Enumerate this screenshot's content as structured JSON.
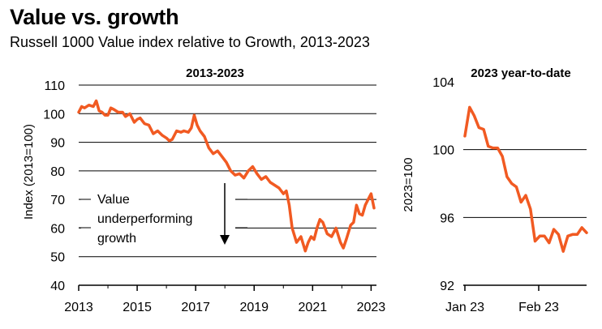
{
  "title": "Value vs. growth",
  "subtitle": "Russell 1000 Value index relative to Growth, 2013-2023",
  "colors": {
    "line": "#f15a22",
    "grid": "#000000"
  },
  "chart_data": [
    {
      "type": "line",
      "title": "2013-2023",
      "ylabel": "Index (2013=100)",
      "ylim": [
        40,
        110
      ],
      "yticks": [
        40,
        50,
        60,
        70,
        80,
        90,
        100,
        110
      ],
      "xlim": [
        2013,
        2023.1
      ],
      "xticks": [
        2013,
        2015,
        2017,
        2019,
        2021,
        2023
      ],
      "grid": "horizontal",
      "series": [
        {
          "x": [
            2013.0,
            2013.1,
            2013.2,
            2013.35,
            2013.5,
            2013.6,
            2013.7,
            2013.8,
            2013.9,
            2014.0,
            2014.1,
            2014.2,
            2014.35,
            2014.5,
            2014.6,
            2014.75,
            2014.9,
            2015.0,
            2015.1,
            2015.25,
            2015.4,
            2015.55,
            2015.7,
            2015.85,
            2016.0,
            2016.1,
            2016.2,
            2016.35,
            2016.5,
            2016.6,
            2016.75,
            2016.85,
            2016.95,
            2017.05,
            2017.15,
            2017.3,
            2017.45,
            2017.6,
            2017.75,
            2017.9,
            2018.05,
            2018.2,
            2018.35,
            2018.5,
            2018.65,
            2018.8,
            2018.95,
            2019.1,
            2019.25,
            2019.4,
            2019.55,
            2019.7,
            2019.85,
            2020.0,
            2020.1,
            2020.2,
            2020.3,
            2020.45,
            2020.6,
            2020.75,
            2020.85,
            2020.95,
            2021.05,
            2021.15,
            2021.25,
            2021.35,
            2021.5,
            2021.65,
            2021.8,
            2021.95,
            2022.05,
            2022.15,
            2022.3,
            2022.4,
            2022.5,
            2022.6,
            2022.7,
            2022.8,
            2022.9,
            2023.0,
            2023.1
          ],
          "y": [
            100.5,
            102.5,
            102.0,
            103.0,
            102.5,
            104.5,
            101.0,
            100.5,
            99.5,
            99.5,
            102.0,
            101.5,
            100.5,
            100.5,
            99.0,
            100.0,
            97.0,
            98.0,
            98.5,
            96.5,
            96.0,
            93.0,
            94.0,
            92.5,
            91.5,
            90.5,
            91.0,
            94.0,
            93.5,
            94.0,
            93.5,
            95.0,
            99.5,
            96.0,
            94.0,
            92.0,
            88.0,
            86.0,
            87.0,
            85.0,
            83.0,
            80.0,
            78.5,
            79.0,
            77.5,
            80.0,
            81.5,
            79.0,
            77.0,
            78.0,
            76.0,
            75.0,
            74.0,
            72.0,
            73.0,
            68.0,
            60.0,
            55.0,
            57.0,
            52.0,
            55.0,
            57.0,
            56.0,
            60.0,
            63.0,
            62.0,
            58.0,
            57.0,
            60.0,
            55.0,
            53.0,
            56.0,
            61.0,
            62.0,
            68.0,
            65.0,
            64.5,
            68.0,
            70.0,
            72.0,
            67.0
          ]
        }
      ],
      "annotation": {
        "lines": [
          "Value",
          "underperforming",
          "growth"
        ]
      }
    },
    {
      "type": "line",
      "title": "2023 year-to-date",
      "ylabel": "2023=100",
      "ylim": [
        92,
        104
      ],
      "yticks": [
        92,
        96,
        100,
        104
      ],
      "xticks": [
        "Jan 23",
        "Feb 23"
      ],
      "grid": "horizontal",
      "series": [
        {
          "x": [
            0,
            2,
            4,
            6,
            8,
            10,
            12,
            14,
            16,
            18,
            20,
            22,
            24,
            26,
            28,
            30,
            32,
            34,
            36,
            38,
            40,
            42,
            44,
            46,
            48,
            50,
            52
          ],
          "y": [
            100.8,
            102.5,
            102.0,
            101.3,
            101.2,
            100.2,
            100.1,
            100.1,
            99.6,
            98.4,
            98.0,
            97.8,
            96.9,
            97.3,
            96.5,
            94.6,
            94.9,
            94.9,
            94.5,
            95.3,
            95.0,
            94.0,
            94.9,
            95.0,
            95.0,
            95.4,
            95.1
          ]
        }
      ]
    }
  ]
}
